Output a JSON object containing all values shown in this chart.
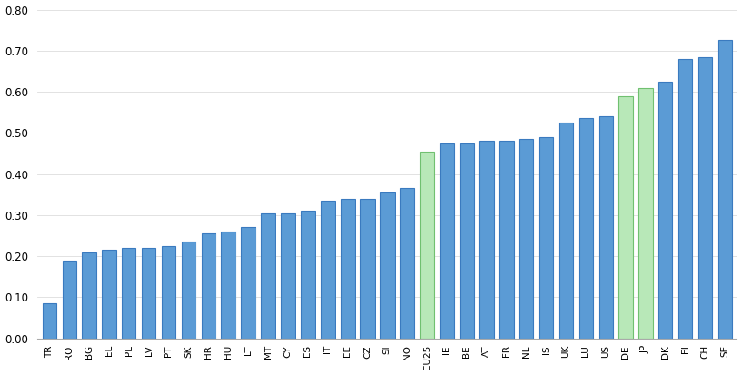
{
  "categories": [
    "TR",
    "RO",
    "BG",
    "EL",
    "PL",
    "LV",
    "PT",
    "SK",
    "HR",
    "HU",
    "LT",
    "MT",
    "CY",
    "ES",
    "IT",
    "EE",
    "CZ",
    "SI",
    "NO",
    "EU25",
    "IE",
    "BE",
    "AT",
    "FR",
    "NL",
    "IS",
    "UK",
    "LU",
    "US",
    "DE",
    "JP",
    "DK",
    "FI",
    "CH",
    "SE"
  ],
  "values": [
    0.085,
    0.19,
    0.21,
    0.215,
    0.22,
    0.22,
    0.225,
    0.235,
    0.255,
    0.26,
    0.27,
    0.305,
    0.305,
    0.31,
    0.335,
    0.34,
    0.34,
    0.355,
    0.365,
    0.455,
    0.475,
    0.475,
    0.48,
    0.48,
    0.485,
    0.49,
    0.525,
    0.535,
    0.54,
    0.59,
    0.61,
    0.625,
    0.68,
    0.685,
    0.725
  ],
  "green_bars": [
    "EU25",
    "DE",
    "JP"
  ],
  "bar_color_blue": "#5b9bd5",
  "bar_color_green": "#b8e8b8",
  "bar_edgecolor": "#3a7abf",
  "bar_edgecolor_green": "#70c070",
  "ylim": [
    0,
    0.8
  ],
  "yticks": [
    0.0,
    0.1,
    0.2,
    0.3,
    0.4,
    0.5,
    0.6,
    0.7,
    0.8
  ],
  "background_color": "#ffffff",
  "figsize": [
    8.16,
    4.13
  ],
  "dpi": 100
}
